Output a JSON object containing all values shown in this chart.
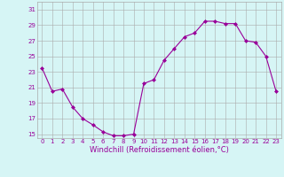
{
  "x": [
    0,
    1,
    2,
    3,
    4,
    5,
    6,
    7,
    8,
    9,
    10,
    11,
    12,
    13,
    14,
    15,
    16,
    17,
    18,
    19,
    20,
    21,
    22,
    23
  ],
  "y": [
    23.5,
    20.5,
    20.8,
    18.5,
    17.0,
    16.2,
    15.3,
    14.8,
    14.8,
    15.0,
    21.5,
    22.0,
    24.5,
    26.0,
    27.5,
    28.0,
    29.5,
    29.5,
    29.2,
    29.2,
    27.0,
    26.8,
    25.0,
    20.5
  ],
  "line_color": "#990099",
  "marker": "D",
  "marker_size": 2,
  "bg_color": "#d6f5f5",
  "grid_color": "#aaaaaa",
  "xlabel": "Windchill (Refroidissement éolien,°C)",
  "yticks": [
    15,
    17,
    19,
    21,
    23,
    25,
    27,
    29,
    31
  ],
  "xtick_labels": [
    "0",
    "1",
    "2",
    "3",
    "4",
    "5",
    "6",
    "7",
    "8",
    "9",
    "10",
    "11",
    "12",
    "13",
    "14",
    "15",
    "16",
    "17",
    "18",
    "19",
    "20",
    "21",
    "22",
    "23"
  ],
  "ylim": [
    14.5,
    32
  ],
  "xlim": [
    -0.5,
    23.5
  ],
  "tick_color": "#990099",
  "xlabel_color": "#990099",
  "tick_fontsize": 5,
  "xlabel_fontsize": 6
}
